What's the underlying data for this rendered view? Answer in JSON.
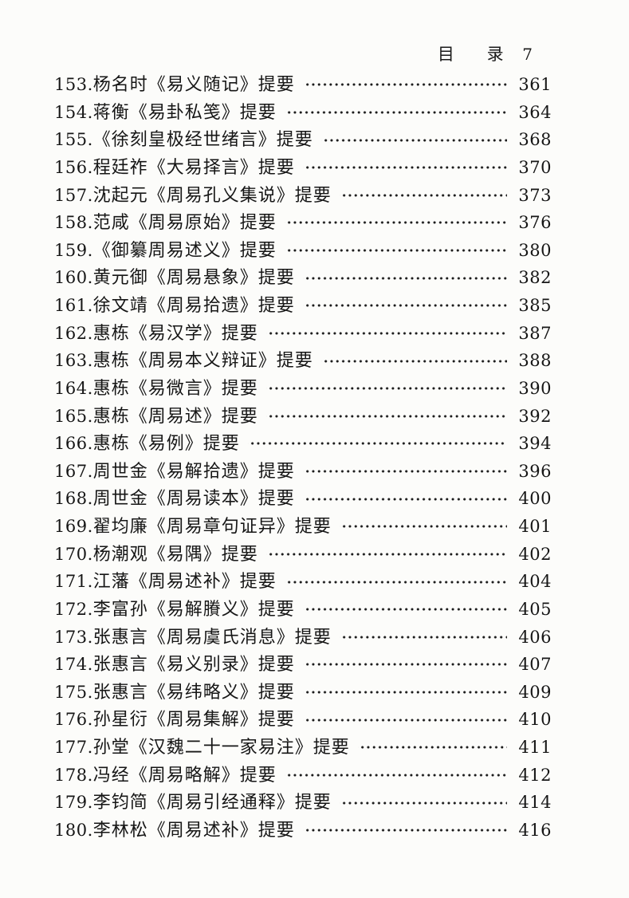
{
  "page_header": {
    "title_char_1": "目",
    "title_char_2": "录",
    "page_number": "7"
  },
  "toc": {
    "entries": [
      {
        "num": "153.",
        "title": "杨名时《易义随记》提要",
        "page": "361"
      },
      {
        "num": "154.",
        "title": "蒋衡《易卦私笺》提要",
        "page": "364"
      },
      {
        "num": "155.",
        "title": "《徐刻皇极经世绪言》提要",
        "page": "368"
      },
      {
        "num": "156.",
        "title": "程廷祚《大易择言》提要",
        "page": "370"
      },
      {
        "num": "157.",
        "title": "沈起元《周易孔义集说》提要",
        "page": "373"
      },
      {
        "num": "158.",
        "title": "范咸《周易原始》提要",
        "page": "376"
      },
      {
        "num": "159.",
        "title": "《御纂周易述义》提要",
        "page": "380"
      },
      {
        "num": "160.",
        "title": "黄元御《周易悬象》提要",
        "page": "382"
      },
      {
        "num": "161.",
        "title": "徐文靖《周易拾遗》提要",
        "page": "385"
      },
      {
        "num": "162.",
        "title": "惠栋《易汉学》提要",
        "page": "387"
      },
      {
        "num": "163.",
        "title": "惠栋《周易本义辩证》提要",
        "page": "388"
      },
      {
        "num": "164.",
        "title": "惠栋《易微言》提要",
        "page": "390"
      },
      {
        "num": "165.",
        "title": "惠栋《周易述》提要",
        "page": "392"
      },
      {
        "num": "166.",
        "title": "惠栋《易例》提要",
        "page": "394"
      },
      {
        "num": "167.",
        "title": "周世金《易解拾遗》提要",
        "page": "396"
      },
      {
        "num": "168.",
        "title": "周世金《周易读本》提要",
        "page": "400"
      },
      {
        "num": "169.",
        "title": "翟均廉《周易章句证异》提要",
        "page": "401"
      },
      {
        "num": "170.",
        "title": "杨潮观《易隅》提要",
        "page": "402"
      },
      {
        "num": "171.",
        "title": "江藩《周易述补》提要",
        "page": "404"
      },
      {
        "num": "172.",
        "title": "李富孙《易解賸义》提要",
        "page": "405"
      },
      {
        "num": "173.",
        "title": "张惠言《周易虞氏消息》提要",
        "page": "406"
      },
      {
        "num": "174.",
        "title": "张惠言《易义别录》提要",
        "page": "407"
      },
      {
        "num": "175.",
        "title": "张惠言《易纬略义》提要",
        "page": "409"
      },
      {
        "num": "176.",
        "title": "孙星衍《周易集解》提要",
        "page": "410"
      },
      {
        "num": "177.",
        "title": "孙堂《汉魏二十一家易注》提要",
        "page": "411"
      },
      {
        "num": "178.",
        "title": "冯经《周易略解》提要",
        "page": "412"
      },
      {
        "num": "179.",
        "title": "李钧简《周易引经通释》提要",
        "page": "414"
      },
      {
        "num": "180.",
        "title": "李林松《周易述补》提要",
        "page": "416"
      }
    ]
  }
}
